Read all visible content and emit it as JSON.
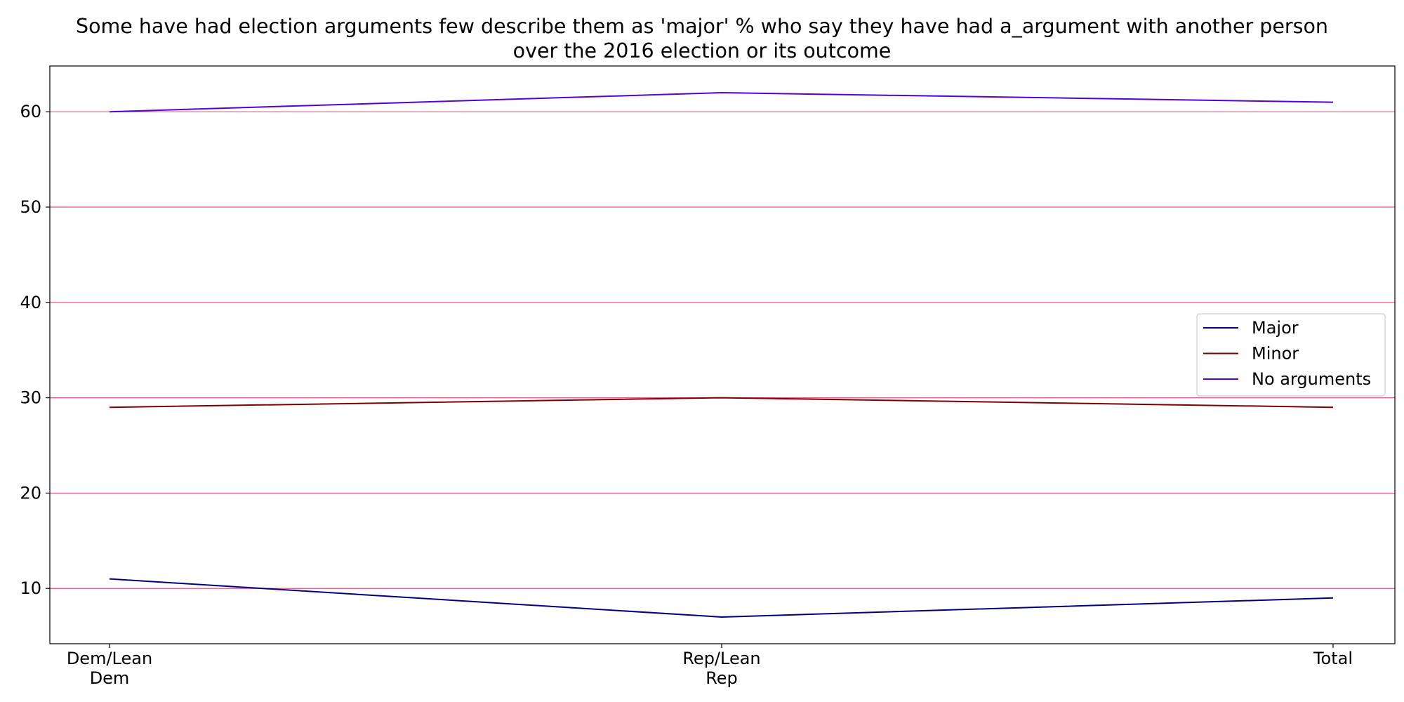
{
  "chart_data": {
    "type": "line",
    "title_lines": [
      "Some have had election arguments few describe them as 'major' % who say they have had a_argument with another person",
      "over the 2016 election or its outcome"
    ],
    "xlabel": "",
    "ylabel": "",
    "categories": [
      [
        "Dem/Lean",
        "Dem"
      ],
      [
        "Rep/Lean",
        "Rep"
      ],
      [
        "Total"
      ]
    ],
    "ylim": [
      4.2,
      64.8
    ],
    "yticks": [
      10,
      20,
      30,
      40,
      50,
      60
    ],
    "grid": "horizontal",
    "grid_color": "#e75480",
    "legend_position": "center-right",
    "series": [
      {
        "name": "Major",
        "color": "#00007f",
        "values": [
          11,
          7,
          9
        ]
      },
      {
        "name": "Minor",
        "color": "#7f0000",
        "values": [
          29,
          30,
          29
        ]
      },
      {
        "name": "No arguments",
        "color": "#5500d4",
        "values": [
          60,
          62,
          61
        ]
      }
    ]
  }
}
